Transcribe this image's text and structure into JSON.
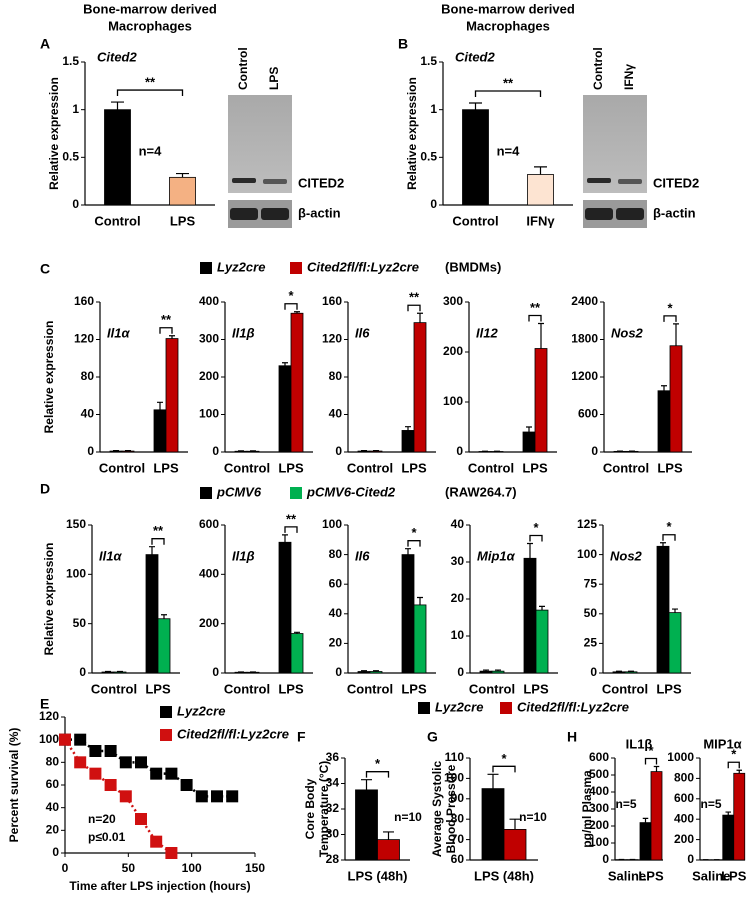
{
  "chart_data": [
    {
      "type": "bar",
      "letter": "A",
      "header": [
        "Bone-marrow derived",
        "Macrophages"
      ],
      "title": "Cited2",
      "ylabel": "Relative expression",
      "categories": [
        "Control",
        "LPS"
      ],
      "values": [
        1,
        0.29
      ],
      "errors": [
        0.08,
        0.04
      ],
      "colors": [
        "#000000",
        "#f4b183"
      ],
      "ylim": [
        0,
        1.5
      ],
      "yticks": [
        0,
        0.5,
        1,
        1.5
      ],
      "significance": "**",
      "note": "n=4",
      "blot": {
        "lanes": [
          "Control",
          "LPS"
        ],
        "bands": [
          "CITED2",
          "β-actin"
        ]
      }
    },
    {
      "type": "bar",
      "letter": "B",
      "header": [
        "Bone-marrow derived",
        "Macrophages"
      ],
      "title": "Cited2",
      "ylabel": "Relative expression",
      "categories": [
        "Control",
        "IFNγ"
      ],
      "values": [
        1,
        0.32
      ],
      "errors": [
        0.07,
        0.08
      ],
      "colors": [
        "#000000",
        "#fde4d2"
      ],
      "ylim": [
        0,
        1.5
      ],
      "yticks": [
        0,
        0.5,
        1,
        1.5
      ],
      "significance": "**",
      "note": "n=4",
      "blot": {
        "lanes": [
          "Control",
          "IFNγ"
        ],
        "bands": [
          "CITED2",
          "β-actin"
        ]
      }
    },
    {
      "type": "grouped-bar",
      "letter": "C",
      "ylabel": "Relative expression",
      "legend_note": "(BMDMs)",
      "series": [
        {
          "name": "Lyz2cre",
          "color": "#000000"
        },
        {
          "name": "Cited2fl/fl:Lyz2cre",
          "color": "#c00000"
        }
      ],
      "panels": [
        {
          "title": "Il1α",
          "categories": [
            "Control",
            "LPS"
          ],
          "values": [
            [
              1,
              45
            ],
            [
              1,
              121
            ]
          ],
          "errors": [
            [
              0.5,
              8
            ],
            [
              0.5,
              3
            ]
          ],
          "ylim": [
            0,
            160
          ],
          "yticks": [
            0,
            40,
            80,
            120,
            160
          ],
          "significance": "**"
        },
        {
          "title": "Il1β",
          "categories": [
            "Control",
            "LPS"
          ],
          "values": [
            [
              2,
              230
            ],
            [
              2,
              370
            ]
          ],
          "errors": [
            [
              1,
              8
            ],
            [
              1,
              4
            ]
          ],
          "ylim": [
            0,
            400
          ],
          "yticks": [
            0,
            100,
            200,
            300,
            400
          ],
          "significance": "*"
        },
        {
          "title": "Il6",
          "categories": [
            "Control",
            "LPS"
          ],
          "values": [
            [
              1,
              23
            ],
            [
              1,
              138
            ]
          ],
          "errors": [
            [
              0.5,
              4
            ],
            [
              0.5,
              10
            ]
          ],
          "ylim": [
            0,
            160
          ],
          "yticks": [
            0,
            40,
            80,
            120,
            160
          ],
          "significance": "**"
        },
        {
          "title": "Il12",
          "categories": [
            "Control",
            "LPS"
          ],
          "values": [
            [
              1,
              40
            ],
            [
              1,
              207
            ]
          ],
          "errors": [
            [
              0.5,
              10
            ],
            [
              0.5,
              50
            ]
          ],
          "ylim": [
            0,
            300
          ],
          "yticks": [
            0,
            100,
            200,
            300
          ],
          "significance": "**"
        },
        {
          "title": "Nos2",
          "categories": [
            "Control",
            "LPS"
          ],
          "values": [
            [
              10,
              980
            ],
            [
              10,
              1700
            ]
          ],
          "errors": [
            [
              5,
              80
            ],
            [
              5,
              350
            ]
          ],
          "ylim": [
            0,
            2400
          ],
          "yticks": [
            0,
            600,
            1200,
            1800,
            2400
          ],
          "significance": "*"
        }
      ]
    },
    {
      "type": "grouped-bar",
      "letter": "D",
      "ylabel": "Relative expression",
      "legend_note": "(RAW264.7)",
      "series": [
        {
          "name": "pCMV6",
          "color": "#000000"
        },
        {
          "name": "pCMV6-Cited2",
          "color": "#00b050"
        }
      ],
      "panels": [
        {
          "title": "Il1α",
          "categories": [
            "Control",
            "LPS"
          ],
          "values": [
            [
              1,
              120
            ],
            [
              1,
              55
            ]
          ],
          "errors": [
            [
              0.5,
              8
            ],
            [
              0.5,
              4
            ]
          ],
          "ylim": [
            0,
            150
          ],
          "yticks": [
            0,
            50,
            100,
            150
          ],
          "significance": "**"
        },
        {
          "title": "Il1β",
          "categories": [
            "Control",
            "LPS"
          ],
          "values": [
            [
              3,
              530
            ],
            [
              3,
              160
            ]
          ],
          "errors": [
            [
              1,
              30
            ],
            [
              1,
              5
            ]
          ],
          "ylim": [
            0,
            600
          ],
          "yticks": [
            0,
            200,
            400,
            600
          ],
          "significance": "**"
        },
        {
          "title": "Il6",
          "categories": [
            "Control",
            "LPS"
          ],
          "values": [
            [
              1,
              80
            ],
            [
              1,
              46
            ]
          ],
          "errors": [
            [
              0.5,
              4
            ],
            [
              0.5,
              5
            ]
          ],
          "ylim": [
            0,
            100
          ],
          "yticks": [
            0,
            20,
            40,
            60,
            80,
            100
          ],
          "significance": "*"
        },
        {
          "title": "Mip1α",
          "categories": [
            "Control",
            "LPS"
          ],
          "values": [
            [
              0.5,
              31
            ],
            [
              0.5,
              17
            ]
          ],
          "errors": [
            [
              0.3,
              4
            ],
            [
              0.3,
              1
            ]
          ],
          "ylim": [
            0,
            40
          ],
          "yticks": [
            0,
            10,
            20,
            30,
            40
          ],
          "significance": "*"
        },
        {
          "title": "Nos2",
          "categories": [
            "Control",
            "LPS"
          ],
          "values": [
            [
              1,
              107
            ],
            [
              1,
              51
            ]
          ],
          "errors": [
            [
              0.5,
              3
            ],
            [
              0.5,
              3
            ]
          ],
          "ylim": [
            0,
            125
          ],
          "yticks": [
            0,
            25,
            50,
            75,
            100,
            125
          ],
          "significance": "*"
        }
      ]
    },
    {
      "type": "line",
      "letter": "E",
      "xlabel": "Time after LPS injection (hours)",
      "ylabel": "Percent survival (%)",
      "xlim": [
        0,
        150
      ],
      "xticks": [
        0,
        50,
        100,
        150
      ],
      "ylim": [
        0,
        120
      ],
      "yticks": [
        0,
        20,
        40,
        60,
        80,
        100,
        120
      ],
      "series": [
        {
          "name": "Lyz2cre",
          "color": "#000000",
          "x": [
            0,
            12,
            24,
            36,
            48,
            60,
            72,
            84,
            96,
            108,
            120,
            132
          ],
          "values": [
            100,
            100,
            90,
            90,
            80,
            80,
            70,
            70,
            60,
            50,
            50,
            50
          ]
        },
        {
          "name": "Cited2fl/fl:Lyz2cre",
          "color": "#d01010",
          "x": [
            0,
            12,
            24,
            36,
            48,
            60,
            72,
            84
          ],
          "values": [
            100,
            80,
            70,
            60,
            50,
            30,
            10,
            0
          ]
        }
      ],
      "notes": [
        "n=20",
        "p≤0.01"
      ]
    },
    {
      "type": "grouped-bar",
      "series": [
        {
          "name": "Lyz2cre",
          "color": "#000000"
        },
        {
          "name": "Cited2fl/fl:Lyz2cre",
          "color": "#c00000"
        }
      ],
      "panels": [
        {
          "letter": "F",
          "ylabel": [
            "Core Body",
            "Temperature (°C)"
          ],
          "categories": [
            "LPS (48h)"
          ],
          "values": [
            [
              33.5
            ],
            [
              29.6
            ]
          ],
          "errors": [
            [
              0.8
            ],
            [
              0.6
            ]
          ],
          "ylim": [
            28,
            36
          ],
          "yticks": [
            28,
            30,
            32,
            34,
            36
          ],
          "significance": "*",
          "note": "n=10"
        },
        {
          "letter": "G",
          "ylabel": [
            "Average Systolic",
            "Blood Pressure"
          ],
          "categories": [
            "LPS (48h)"
          ],
          "values": [
            [
              95
            ],
            [
              75
            ]
          ],
          "errors": [
            [
              7
            ],
            [
              5
            ]
          ],
          "ylim": [
            60,
            110
          ],
          "yticks": [
            60,
            70,
            80,
            90,
            100,
            110
          ],
          "significance": "*",
          "note": "n=10"
        },
        {
          "letter": "H",
          "title": "IL1β",
          "ylabel": "pg/ml Plasma",
          "categories": [
            "Saline",
            "LPS"
          ],
          "values": [
            [
              2,
              220
            ],
            [
              2,
              520
            ]
          ],
          "errors": [
            [
              1,
              25
            ],
            [
              1,
              30
            ]
          ],
          "ylim": [
            0,
            600
          ],
          "yticks": [
            0,
            100,
            200,
            300,
            400,
            500,
            600
          ],
          "significance": "*",
          "note": "n=5"
        },
        {
          "title": "MIP1α",
          "categories": [
            "Saline",
            "LPS"
          ],
          "values": [
            [
              2,
              440
            ],
            [
              2,
              850
            ]
          ],
          "errors": [
            [
              1,
              30
            ],
            [
              1,
              30
            ]
          ],
          "ylim": [
            0,
            1000
          ],
          "yticks": [
            0,
            200,
            400,
            600,
            800,
            1000
          ],
          "significance": "*",
          "note": "n=5"
        }
      ]
    }
  ]
}
